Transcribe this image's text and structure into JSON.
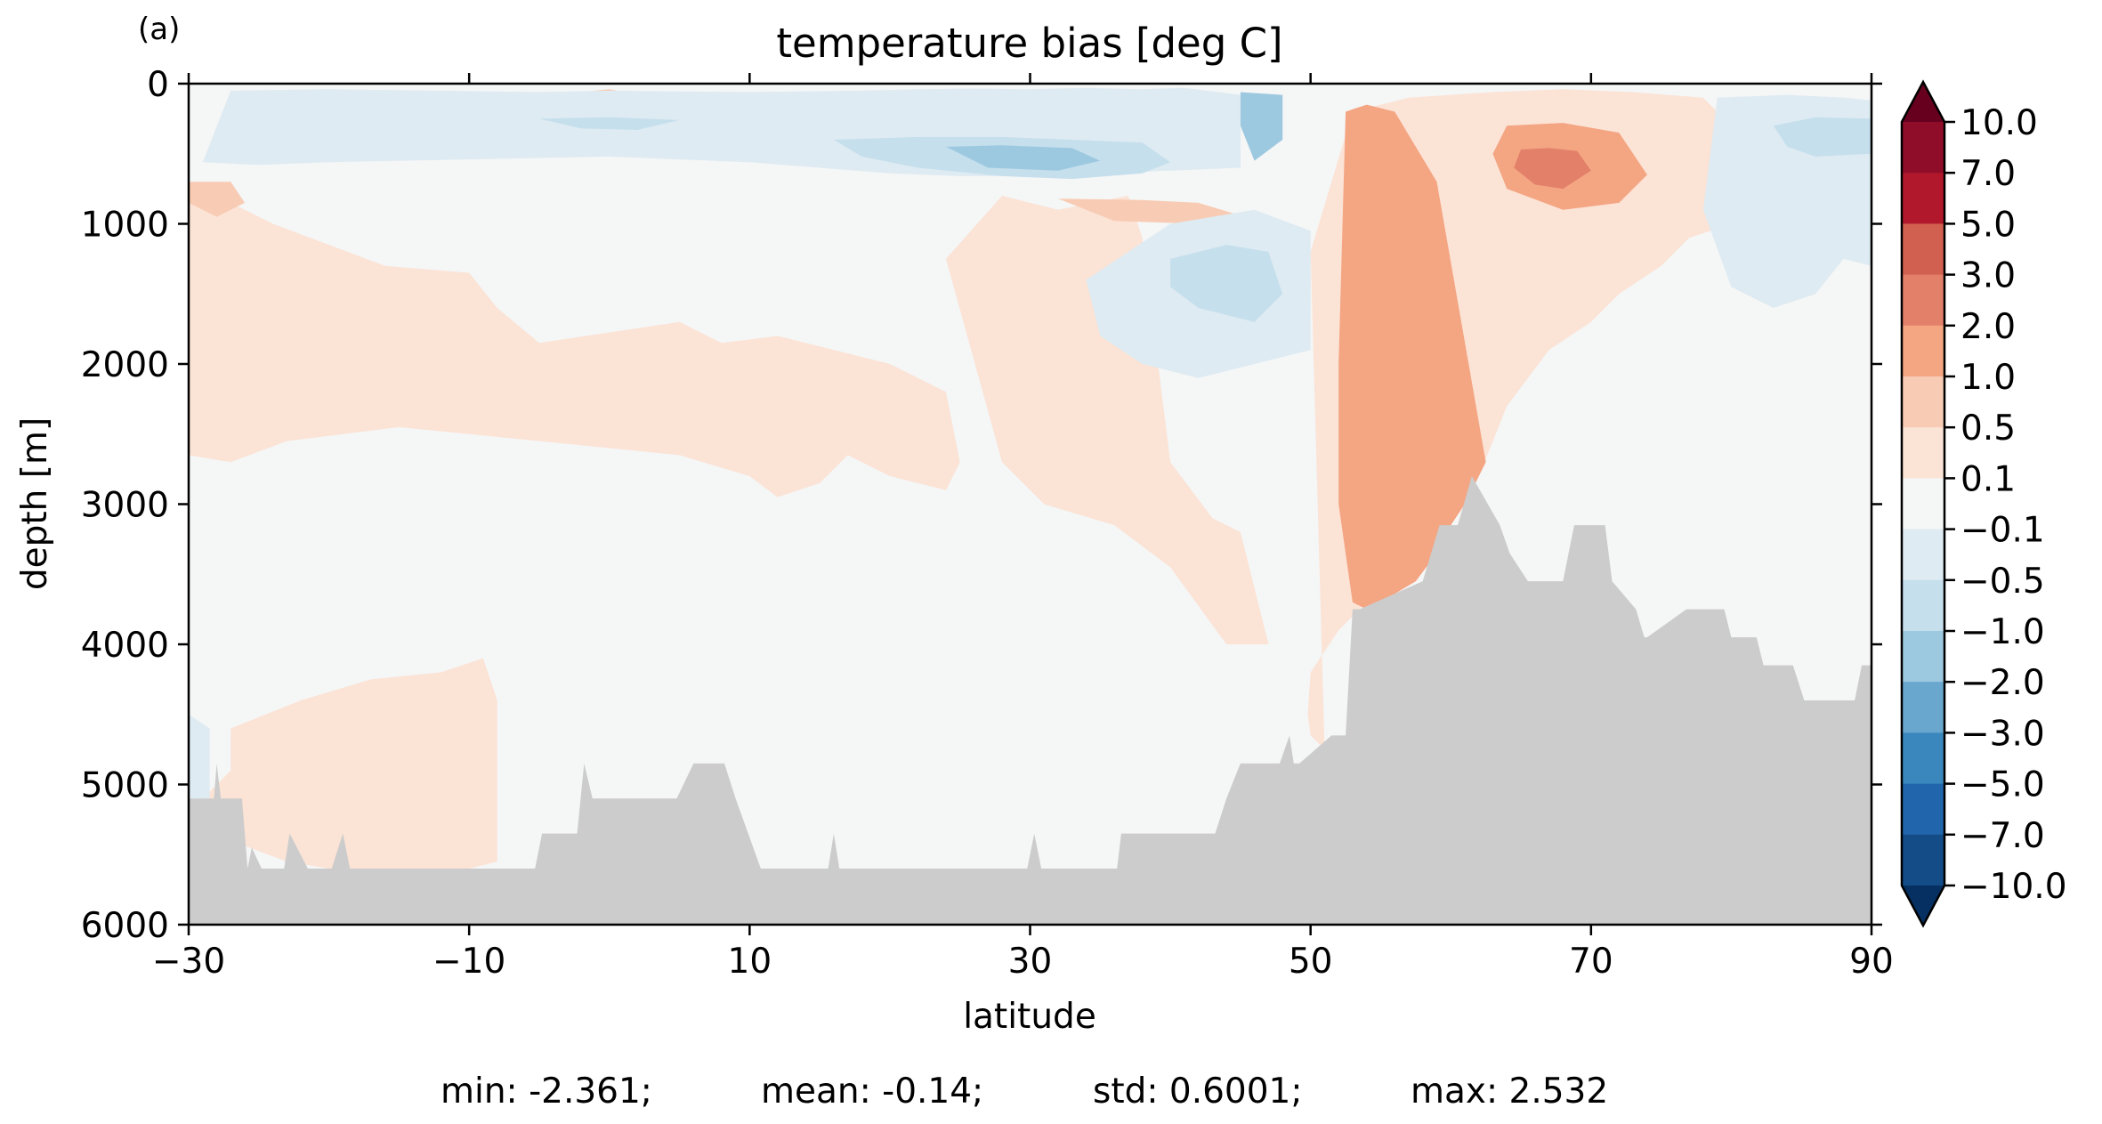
{
  "panel_label": "(a)",
  "title": "temperature bias [deg C]",
  "xlabel": "latitude",
  "ylabel": "depth [m]",
  "stats": {
    "min": "min: -2.361;",
    "mean": "mean: -0.14;",
    "std": "std: 0.6001;",
    "max": "max: 2.532"
  },
  "colors": {
    "land": "#cccccc",
    "background_level": "#f5f6f6"
  },
  "chart_data": {
    "type": "heatmap",
    "title": "temperature bias [deg C]",
    "xlabel": "latitude",
    "ylabel": "depth [m]",
    "xlim": [
      -30,
      90
    ],
    "ylim": [
      6000,
      0
    ],
    "y_inverted": true,
    "xticks": [
      -30,
      -10,
      10,
      30,
      50,
      70,
      90
    ],
    "xtick_labels": [
      "−30",
      "−10",
      "10",
      "30",
      "50",
      "70",
      "90"
    ],
    "yticks": [
      0,
      1000,
      2000,
      3000,
      4000,
      5000,
      6000
    ],
    "ytick_labels": [
      "0",
      "1000",
      "2000",
      "3000",
      "4000",
      "5000",
      "6000"
    ],
    "colorbar": {
      "levels": [
        -10,
        -7,
        -5,
        -3,
        -2,
        -1,
        -0.5,
        -0.1,
        0.1,
        0.5,
        1,
        2,
        3,
        5,
        7,
        10
      ],
      "labels": [
        "10.0",
        "7.0",
        "5.0",
        "3.0",
        "2.0",
        "1.0",
        "0.5",
        "0.1",
        "−0.1",
        "−0.5",
        "−1.0",
        "−2.0",
        "−3.0",
        "−5.0",
        "−7.0",
        "−10.0"
      ],
      "colors": [
        "#053061",
        "#134c87",
        "#2166ac",
        "#3a87bd",
        "#69a7cf",
        "#9dc9e0",
        "#c6dfed",
        "#deebf2",
        "#f5f6f6",
        "#fbe3d6",
        "#f8ccb4",
        "#f4a582",
        "#e2806a",
        "#d26050",
        "#b2182b",
        "#8f0d28",
        "#67001f"
      ],
      "extend": "both"
    },
    "bathymetry": {
      "lat": [
        -30,
        -28.2,
        -28,
        -27.7,
        -26.2,
        -25.8,
        -25.5,
        -24.8,
        -24.5,
        -23.2,
        -22.8,
        -21.5,
        -19.8,
        -19,
        -18.5,
        -5.3,
        -4.8,
        -2.3,
        -1.8,
        -1.2,
        1,
        4.8,
        6,
        8.2,
        9,
        10.8,
        15.6,
        16,
        16.4,
        29.8,
        30.3,
        30.8,
        36.2,
        36.5,
        43.2,
        44,
        45,
        47.8,
        48.5,
        48.8,
        49.2,
        51.5,
        52.5,
        53,
        53.5,
        58,
        59.2,
        60.5,
        61.5,
        63.5,
        64.2,
        65.5,
        68,
        68.8,
        71,
        71.5,
        73.2,
        73.8,
        74,
        76.8,
        77.2,
        79.5,
        80,
        81.8,
        82.3,
        84.4,
        85.2,
        88.8,
        89.3,
        90
      ],
      "depth": [
        5100,
        5100,
        4850,
        5100,
        5100,
        5600,
        5450,
        5600,
        5600,
        5600,
        5350,
        5600,
        5600,
        5350,
        5600,
        5600,
        5350,
        5350,
        4850,
        5100,
        5100,
        5100,
        4850,
        4850,
        5100,
        5600,
        5600,
        5350,
        5600,
        5600,
        5350,
        5600,
        5600,
        5350,
        5350,
        5100,
        4850,
        4850,
        4650,
        4850,
        4850,
        4650,
        4650,
        3750,
        3750,
        3550,
        3150,
        3150,
        2800,
        3150,
        3350,
        3550,
        3550,
        3150,
        3150,
        3550,
        3750,
        3950,
        3950,
        3750,
        3750,
        3750,
        3950,
        3950,
        4150,
        4150,
        4400,
        4400,
        4150,
        4150
      ]
    },
    "bias_regions": [
      {
        "level": 0.1,
        "lat": [
          -30,
          -24,
          -16,
          -10,
          -8,
          -5,
          5,
          8,
          12,
          18,
          20,
          24,
          25,
          24,
          20,
          17,
          15,
          12,
          10,
          5,
          0,
          -5,
          -10,
          -15,
          -19,
          -23,
          -27,
          -30
        ],
        "depth": [
          700,
          1000,
          1300,
          1350,
          1600,
          1850,
          1700,
          1850,
          1800,
          1950,
          2000,
          2200,
          2700,
          2900,
          2800,
          2650,
          2850,
          2950,
          2800,
          2650,
          2600,
          2550,
          2500,
          2450,
          2500,
          2550,
          2700,
          2650
        ]
      },
      {
        "level": 0.5,
        "lat": [
          -30,
          -27,
          -26,
          -28,
          -30
        ],
        "depth": [
          700,
          700,
          850,
          950,
          850
        ]
      },
      {
        "level": 0.5,
        "lat": [
          -2,
          0,
          2,
          0,
          -2
        ],
        "depth": [
          60,
          40,
          80,
          160,
          120
        ]
      },
      {
        "level": 0.1,
        "lat": [
          -27,
          -22,
          -17,
          -12,
          -9,
          -8,
          -8,
          -8,
          -10,
          -15,
          -20,
          -23,
          -27,
          -29,
          -27
        ],
        "depth": [
          4600,
          4400,
          4250,
          4200,
          4100,
          4400,
          4800,
          5550,
          5600,
          5600,
          5600,
          5550,
          5400,
          5100,
          4900
        ]
      },
      {
        "level": 0.1,
        "lat": [
          24,
          28,
          32,
          37,
          38,
          40,
          43,
          45,
          47,
          44,
          40,
          36,
          31,
          28
        ],
        "depth": [
          1250,
          800,
          900,
          800,
          1100,
          2700,
          3100,
          3200,
          4000,
          4000,
          3450,
          3150,
          3000,
          2700
        ]
      },
      {
        "level": 0.5,
        "lat": [
          32,
          38,
          42,
          45,
          42,
          36
        ],
        "depth": [
          820,
          830,
          850,
          940,
          1000,
          980
        ]
      },
      {
        "level": 0.1,
        "lat": [
          50,
          53,
          57,
          60,
          63,
          68,
          73,
          78,
          80,
          82,
          80,
          77,
          75,
          72,
          70,
          67,
          64,
          62,
          60,
          57,
          53,
          52,
          50,
          49.8,
          50,
          51
        ],
        "depth": [
          1200,
          200,
          100,
          80,
          60,
          40,
          60,
          100,
          300,
          700,
          1000,
          1100,
          1300,
          1500,
          1700,
          1900,
          2300,
          2800,
          3000,
          3400,
          3800,
          3900,
          4200,
          4500,
          4650,
          4750
        ]
      },
      {
        "level": 1.0,
        "lat": [
          52.5,
          54,
          56,
          59,
          62.5,
          62,
          61,
          60,
          59,
          57.5,
          55,
          54,
          53,
          52,
          52
        ],
        "depth": [
          200,
          150,
          200,
          700,
          2700,
          2800,
          3000,
          3150,
          3350,
          3550,
          3700,
          3750,
          3700,
          3000,
          2000
        ]
      },
      {
        "level": 1.0,
        "lat": [
          64,
          68,
          72,
          74,
          72,
          68,
          64,
          63
        ],
        "depth": [
          300,
          280,
          350,
          650,
          850,
          900,
          750,
          500
        ]
      },
      {
        "level": 2.0,
        "lat": [
          65,
          67,
          69,
          70,
          68,
          66,
          64.5
        ],
        "depth": [
          470,
          460,
          480,
          620,
          750,
          720,
          600
        ]
      },
      {
        "level": -0.1,
        "lat": [
          -27,
          -20,
          -12,
          -5,
          0,
          5,
          10,
          18,
          22,
          26,
          30,
          34,
          38,
          41,
          45,
          45,
          40,
          35,
          30,
          25,
          20,
          15,
          10,
          5,
          0,
          -5,
          -10,
          -15,
          -20,
          -25,
          -29
        ],
        "depth": [
          50,
          40,
          50,
          60,
          50,
          55,
          60,
          50,
          40,
          35,
          40,
          30,
          40,
          30,
          80,
          600,
          620,
          640,
          660,
          660,
          640,
          600,
          560,
          540,
          520,
          530,
          540,
          550,
          560,
          580,
          560
        ]
      },
      {
        "level": -0.5,
        "lat": [
          -5,
          0,
          5,
          2,
          -2
        ],
        "depth": [
          250,
          240,
          260,
          330,
          320
        ]
      },
      {
        "level": -0.5,
        "lat": [
          16,
          22,
          28,
          33,
          38,
          40,
          38,
          33,
          28,
          22,
          18
        ],
        "depth": [
          400,
          380,
          380,
          400,
          420,
          560,
          640,
          680,
          660,
          600,
          520
        ]
      },
      {
        "level": -1.0,
        "lat": [
          24,
          28,
          33,
          35,
          32,
          27
        ],
        "depth": [
          450,
          440,
          460,
          550,
          620,
          600
        ]
      },
      {
        "level": -1.0,
        "lat": [
          45,
          48,
          48,
          46,
          45
        ],
        "depth": [
          60,
          80,
          400,
          550,
          300
        ]
      },
      {
        "level": -0.1,
        "lat": [
          34,
          40,
          46,
          50,
          50,
          46,
          42,
          38,
          35
        ],
        "depth": [
          1400,
          1000,
          900,
          1050,
          1900,
          2000,
          2100,
          2000,
          1800
        ]
      },
      {
        "level": -0.5,
        "lat": [
          40,
          44,
          47,
          48,
          46,
          42,
          40
        ],
        "depth": [
          1250,
          1150,
          1200,
          1500,
          1700,
          1600,
          1450
        ]
      },
      {
        "level": -0.1,
        "lat": [
          79,
          84,
          88,
          90,
          90,
          88,
          86,
          83,
          80,
          78
        ],
        "depth": [
          100,
          80,
          100,
          120,
          1300,
          1250,
          1500,
          1600,
          1450,
          900
        ]
      },
      {
        "level": -0.5,
        "lat": [
          83,
          86,
          90,
          90,
          86,
          84
        ],
        "depth": [
          300,
          240,
          250,
          500,
          520,
          450
        ]
      },
      {
        "level": -0.1,
        "lat": [
          -30,
          -28.5,
          -28.5,
          -30
        ],
        "depth": [
          4500,
          4600,
          5100,
          5100
        ]
      }
    ]
  }
}
